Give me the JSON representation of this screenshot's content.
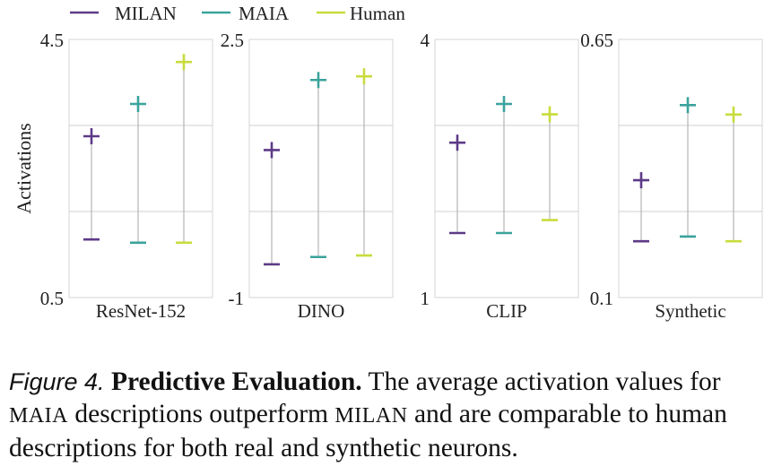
{
  "legend": [
    {
      "name": "MILAN",
      "color": "#5d3a87"
    },
    {
      "name": "MAIA",
      "color": "#3aa39b"
    },
    {
      "name": "Human",
      "color": "#c8dc3c"
    }
  ],
  "ylabel": "Activations",
  "chart_data": [
    {
      "type": "scatter",
      "title": "ResNet-152",
      "ylim": [
        0.5,
        4.5
      ],
      "grid": true,
      "series": [
        {
          "name": "MILAN",
          "top": 3.0,
          "bottom": 1.4
        },
        {
          "name": "MAIA",
          "top": 3.5,
          "bottom": 1.35
        },
        {
          "name": "Human",
          "top": 4.15,
          "bottom": 1.35
        }
      ]
    },
    {
      "type": "scatter",
      "title": "DINO",
      "ylim": [
        -1,
        2.5
      ],
      "grid": true,
      "series": [
        {
          "name": "MILAN",
          "top": 1.0,
          "bottom": -0.55
        },
        {
          "name": "MAIA",
          "top": 1.95,
          "bottom": -0.45
        },
        {
          "name": "Human",
          "top": 2.0,
          "bottom": -0.43
        }
      ]
    },
    {
      "type": "scatter",
      "title": "CLIP",
      "ylim": [
        1,
        4
      ],
      "grid": true,
      "series": [
        {
          "name": "MILAN",
          "top": 2.8,
          "bottom": 1.75
        },
        {
          "name": "MAIA",
          "top": 3.25,
          "bottom": 1.75
        },
        {
          "name": "Human",
          "top": 3.13,
          "bottom": 1.9
        }
      ]
    },
    {
      "type": "scatter",
      "title": "Synthetic",
      "ylim": [
        0.1,
        0.65
      ],
      "grid": true,
      "series": [
        {
          "name": "MILAN",
          "top": 0.35,
          "bottom": 0.22
        },
        {
          "name": "MAIA",
          "top": 0.51,
          "bottom": 0.23
        },
        {
          "name": "Human",
          "top": 0.49,
          "bottom": 0.22
        }
      ]
    }
  ],
  "caption": {
    "figure_label": "Figure 4.",
    "title": "Predictive Evaluation.",
    "text_1": "The average activation values for ",
    "maia": "MAIA",
    "text_2": " descriptions outperform ",
    "milan": "MILAN",
    "text_3": " and are comparable to human descriptions for both real and synthetic neurons."
  }
}
